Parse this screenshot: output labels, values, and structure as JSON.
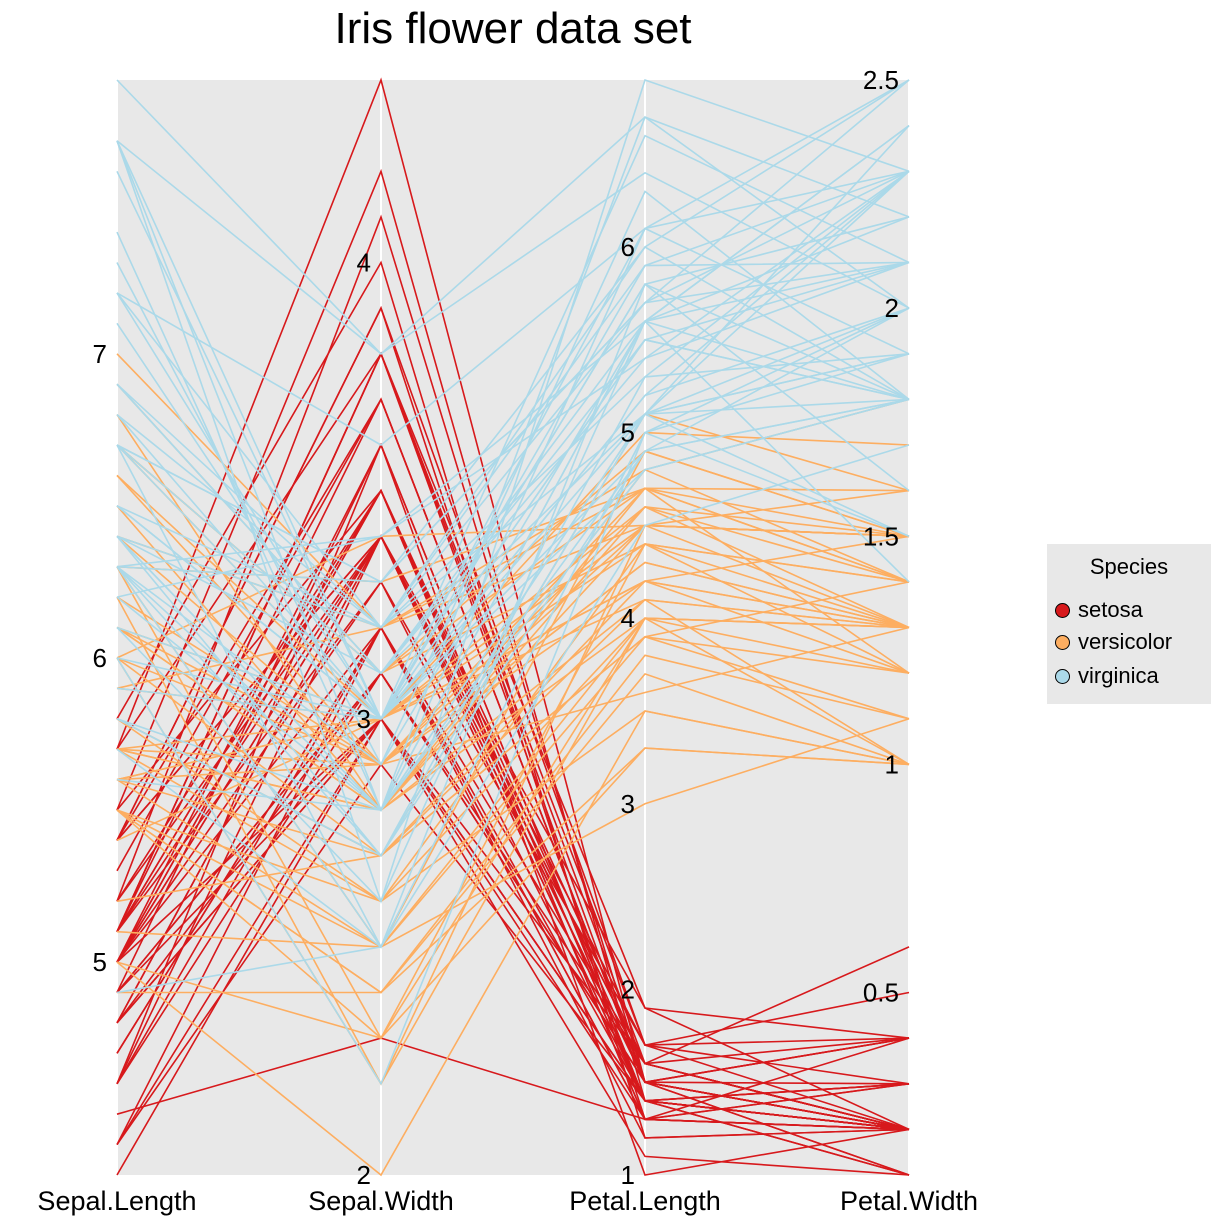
{
  "chart_data": {
    "type": "parallel_coordinates",
    "title": "Iris flower data set",
    "axes": [
      {
        "name": "Sepal.Length",
        "min": 4.3,
        "max": 7.9,
        "ticks": [
          5,
          6,
          7
        ]
      },
      {
        "name": "Sepal.Width",
        "min": 2.0,
        "max": 4.4,
        "ticks": [
          2,
          3,
          4
        ]
      },
      {
        "name": "Petal.Length",
        "min": 1.0,
        "max": 6.9,
        "ticks": [
          1,
          2,
          3,
          4,
          5,
          6
        ]
      },
      {
        "name": "Petal.Width",
        "min": 0.1,
        "max": 2.5,
        "ticks": [
          0.5,
          1,
          1.5,
          2,
          2.5
        ]
      }
    ],
    "legend": {
      "title": "Species",
      "position": "right",
      "entries": [
        {
          "name": "setosa",
          "color": "#d7191c"
        },
        {
          "name": "versicolor",
          "color": "#fdae61"
        },
        {
          "name": "virginica",
          "color": "#abd9e9"
        }
      ]
    },
    "grid": false,
    "series": [
      {
        "name": "setosa",
        "color": "#d7191c",
        "rows": [
          [
            5.1,
            3.5,
            1.4,
            0.2
          ],
          [
            4.9,
            3.0,
            1.4,
            0.2
          ],
          [
            4.7,
            3.2,
            1.3,
            0.2
          ],
          [
            4.6,
            3.1,
            1.5,
            0.2
          ],
          [
            5.0,
            3.6,
            1.4,
            0.2
          ],
          [
            5.4,
            3.9,
            1.7,
            0.4
          ],
          [
            4.6,
            3.4,
            1.4,
            0.3
          ],
          [
            5.0,
            3.4,
            1.5,
            0.2
          ],
          [
            4.4,
            2.9,
            1.4,
            0.2
          ],
          [
            4.9,
            3.1,
            1.5,
            0.1
          ],
          [
            5.4,
            3.7,
            1.5,
            0.2
          ],
          [
            4.8,
            3.4,
            1.6,
            0.2
          ],
          [
            4.8,
            3.0,
            1.4,
            0.1
          ],
          [
            4.3,
            3.0,
            1.1,
            0.1
          ],
          [
            5.8,
            4.0,
            1.2,
            0.2
          ],
          [
            5.7,
            4.4,
            1.5,
            0.4
          ],
          [
            5.4,
            3.9,
            1.3,
            0.4
          ],
          [
            5.1,
            3.5,
            1.4,
            0.3
          ],
          [
            5.7,
            3.8,
            1.7,
            0.3
          ],
          [
            5.1,
            3.8,
            1.5,
            0.3
          ],
          [
            5.4,
            3.4,
            1.7,
            0.2
          ],
          [
            5.1,
            3.7,
            1.5,
            0.4
          ],
          [
            4.6,
            3.6,
            1.0,
            0.2
          ],
          [
            5.1,
            3.3,
            1.7,
            0.5
          ],
          [
            4.8,
            3.4,
            1.9,
            0.2
          ],
          [
            5.0,
            3.0,
            1.6,
            0.2
          ],
          [
            5.0,
            3.4,
            1.6,
            0.4
          ],
          [
            5.2,
            3.5,
            1.5,
            0.2
          ],
          [
            5.2,
            3.4,
            1.4,
            0.2
          ],
          [
            4.7,
            3.2,
            1.6,
            0.2
          ],
          [
            4.8,
            3.1,
            1.6,
            0.2
          ],
          [
            5.4,
            3.4,
            1.5,
            0.4
          ],
          [
            5.2,
            4.1,
            1.5,
            0.1
          ],
          [
            5.5,
            4.2,
            1.4,
            0.2
          ],
          [
            4.9,
            3.1,
            1.5,
            0.2
          ],
          [
            5.0,
            3.2,
            1.2,
            0.2
          ],
          [
            5.5,
            3.5,
            1.3,
            0.2
          ],
          [
            4.9,
            3.6,
            1.4,
            0.1
          ],
          [
            4.4,
            3.0,
            1.3,
            0.2
          ],
          [
            5.1,
            3.4,
            1.5,
            0.2
          ],
          [
            5.0,
            3.5,
            1.3,
            0.3
          ],
          [
            4.5,
            2.3,
            1.3,
            0.3
          ],
          [
            4.4,
            3.2,
            1.3,
            0.2
          ],
          [
            5.0,
            3.5,
            1.6,
            0.6
          ],
          [
            5.1,
            3.8,
            1.9,
            0.4
          ],
          [
            4.8,
            3.0,
            1.4,
            0.3
          ],
          [
            5.1,
            3.8,
            1.6,
            0.2
          ],
          [
            4.6,
            3.2,
            1.4,
            0.2
          ],
          [
            5.3,
            3.7,
            1.5,
            0.2
          ],
          [
            5.0,
            3.3,
            1.4,
            0.2
          ]
        ]
      },
      {
        "name": "versicolor",
        "color": "#fdae61",
        "rows": [
          [
            7.0,
            3.2,
            4.7,
            1.4
          ],
          [
            6.4,
            3.2,
            4.5,
            1.5
          ],
          [
            6.9,
            3.1,
            4.9,
            1.5
          ],
          [
            5.5,
            2.3,
            4.0,
            1.3
          ],
          [
            6.5,
            2.8,
            4.6,
            1.5
          ],
          [
            5.7,
            2.8,
            4.5,
            1.3
          ],
          [
            6.3,
            3.3,
            4.7,
            1.6
          ],
          [
            4.9,
            2.4,
            3.3,
            1.0
          ],
          [
            6.6,
            2.9,
            4.6,
            1.3
          ],
          [
            5.2,
            2.7,
            3.9,
            1.4
          ],
          [
            5.0,
            2.0,
            3.5,
            1.0
          ],
          [
            5.9,
            3.0,
            4.2,
            1.5
          ],
          [
            6.0,
            2.2,
            4.0,
            1.0
          ],
          [
            6.1,
            2.9,
            4.7,
            1.4
          ],
          [
            5.6,
            2.9,
            3.6,
            1.3
          ],
          [
            6.7,
            3.1,
            4.4,
            1.4
          ],
          [
            5.6,
            3.0,
            4.5,
            1.5
          ],
          [
            5.8,
            2.7,
            4.1,
            1.0
          ],
          [
            6.2,
            2.2,
            4.5,
            1.5
          ],
          [
            5.6,
            2.5,
            3.9,
            1.1
          ],
          [
            5.9,
            3.2,
            4.8,
            1.8
          ],
          [
            6.1,
            2.8,
            4.0,
            1.3
          ],
          [
            6.3,
            2.5,
            4.9,
            1.5
          ],
          [
            6.1,
            2.8,
            4.7,
            1.2
          ],
          [
            6.4,
            2.9,
            4.3,
            1.3
          ],
          [
            6.6,
            3.0,
            4.4,
            1.4
          ],
          [
            6.8,
            2.8,
            4.8,
            1.4
          ],
          [
            6.7,
            3.0,
            5.0,
            1.7
          ],
          [
            6.0,
            2.9,
            4.5,
            1.5
          ],
          [
            5.7,
            2.6,
            3.5,
            1.0
          ],
          [
            5.5,
            2.4,
            3.8,
            1.1
          ],
          [
            5.5,
            2.4,
            3.7,
            1.0
          ],
          [
            5.8,
            2.7,
            3.9,
            1.2
          ],
          [
            6.0,
            2.7,
            5.1,
            1.6
          ],
          [
            5.4,
            3.0,
            4.5,
            1.5
          ],
          [
            6.0,
            3.4,
            4.5,
            1.6
          ],
          [
            6.7,
            3.1,
            4.7,
            1.5
          ],
          [
            6.3,
            2.3,
            4.4,
            1.3
          ],
          [
            5.6,
            3.0,
            4.1,
            1.3
          ],
          [
            5.5,
            2.5,
            4.0,
            1.3
          ],
          [
            5.5,
            2.6,
            4.4,
            1.2
          ],
          [
            6.1,
            3.0,
            4.6,
            1.4
          ],
          [
            5.8,
            2.6,
            4.0,
            1.2
          ],
          [
            5.0,
            2.3,
            3.3,
            1.0
          ],
          [
            5.6,
            2.7,
            4.2,
            1.3
          ],
          [
            5.7,
            3.0,
            4.2,
            1.2
          ],
          [
            5.7,
            2.9,
            4.2,
            1.3
          ],
          [
            6.2,
            2.9,
            4.3,
            1.3
          ],
          [
            5.1,
            2.5,
            3.0,
            1.1
          ],
          [
            5.7,
            2.8,
            4.1,
            1.3
          ]
        ]
      },
      {
        "name": "virginica",
        "color": "#abd9e9",
        "rows": [
          [
            6.3,
            3.3,
            6.0,
            2.5
          ],
          [
            5.8,
            2.7,
            5.1,
            1.9
          ],
          [
            7.1,
            3.0,
            5.9,
            2.1
          ],
          [
            6.3,
            2.9,
            5.6,
            1.8
          ],
          [
            6.5,
            3.0,
            5.8,
            2.2
          ],
          [
            7.6,
            3.0,
            6.6,
            2.1
          ],
          [
            4.9,
            2.5,
            4.5,
            1.7
          ],
          [
            7.3,
            2.9,
            6.3,
            1.8
          ],
          [
            6.7,
            2.5,
            5.8,
            1.8
          ],
          [
            7.2,
            3.6,
            6.1,
            2.5
          ],
          [
            6.5,
            3.2,
            5.1,
            2.0
          ],
          [
            6.4,
            2.7,
            5.3,
            1.9
          ],
          [
            6.8,
            3.0,
            5.5,
            2.1
          ],
          [
            5.7,
            2.5,
            5.0,
            2.0
          ],
          [
            5.8,
            2.8,
            5.1,
            2.4
          ],
          [
            6.4,
            3.2,
            5.3,
            2.3
          ],
          [
            6.5,
            3.0,
            5.5,
            1.8
          ],
          [
            7.7,
            3.8,
            6.7,
            2.2
          ],
          [
            7.7,
            2.6,
            6.9,
            2.3
          ],
          [
            6.0,
            2.2,
            5.0,
            1.5
          ],
          [
            6.9,
            3.2,
            5.7,
            2.3
          ],
          [
            5.6,
            2.8,
            4.9,
            2.0
          ],
          [
            7.7,
            2.8,
            6.7,
            2.0
          ],
          [
            6.3,
            2.7,
            4.9,
            1.8
          ],
          [
            6.7,
            3.3,
            5.7,
            2.1
          ],
          [
            7.2,
            3.2,
            6.0,
            1.8
          ],
          [
            6.2,
            2.8,
            4.8,
            1.8
          ],
          [
            6.1,
            3.0,
            4.9,
            1.8
          ],
          [
            6.4,
            2.8,
            5.6,
            2.1
          ],
          [
            7.2,
            3.0,
            5.8,
            1.6
          ],
          [
            7.4,
            2.8,
            6.1,
            1.9
          ],
          [
            7.9,
            3.8,
            6.4,
            2.0
          ],
          [
            6.4,
            2.8,
            5.6,
            2.2
          ],
          [
            6.3,
            2.8,
            5.1,
            1.5
          ],
          [
            6.1,
            2.6,
            5.6,
            1.4
          ],
          [
            7.7,
            3.0,
            6.1,
            2.3
          ],
          [
            6.3,
            3.4,
            5.6,
            2.4
          ],
          [
            6.4,
            3.1,
            5.5,
            1.8
          ],
          [
            6.0,
            3.0,
            4.8,
            1.8
          ],
          [
            6.9,
            3.1,
            5.4,
            2.1
          ],
          [
            6.7,
            3.1,
            5.6,
            2.4
          ],
          [
            6.9,
            3.1,
            5.1,
            2.3
          ],
          [
            5.8,
            2.7,
            5.1,
            1.9
          ],
          [
            6.8,
            3.2,
            5.9,
            2.3
          ],
          [
            6.7,
            3.3,
            5.7,
            2.5
          ],
          [
            6.7,
            3.0,
            5.2,
            2.3
          ],
          [
            6.3,
            2.5,
            5.0,
            1.9
          ],
          [
            6.5,
            3.0,
            5.2,
            2.0
          ],
          [
            6.2,
            3.4,
            5.4,
            2.3
          ],
          [
            5.9,
            3.0,
            5.1,
            1.8
          ]
        ]
      }
    ]
  }
}
